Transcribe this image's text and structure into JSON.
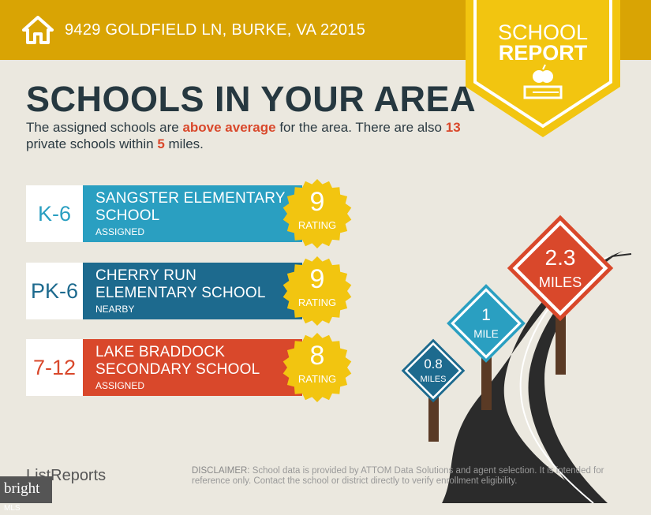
{
  "header": {
    "address": "9429 GOLDFIELD LN, BURKE, VA 22015",
    "icon": "home-icon"
  },
  "badge": {
    "line1": "SCHOOL",
    "line2": "REPORT",
    "icon": "apple-books-icon",
    "color": "#f2c510"
  },
  "title": "SCHOOLS IN YOUR AREA",
  "intro": {
    "p1": "The assigned schools are ",
    "highlight1": "above average",
    "p2": " for the area. There are also ",
    "count": "13",
    "p3": " private schools within ",
    "miles": "5",
    "p4": " miles."
  },
  "schools": [
    {
      "grade": "K-6",
      "name1": "SANGSTER ELEMENTARY",
      "name2": "SCHOOL",
      "type": "ASSIGNED",
      "rating": "9",
      "rating_label": "RATING",
      "color": "#2a9fc1",
      "grade_color": "#2a9fc1"
    },
    {
      "grade": "PK-6",
      "name1": "CHERRY RUN",
      "name2": "ELEMENTARY SCHOOL",
      "type": "NEARBY",
      "rating": "9",
      "rating_label": "RATING",
      "color": "#1d6a8e",
      "grade_color": "#1d6a8e"
    },
    {
      "grade": "7-12",
      "name1": "LAKE BRADDOCK",
      "name2": "SECONDARY SCHOOL",
      "type": "ASSIGNED",
      "rating": "8",
      "rating_label": "RATING",
      "color": "#d9482b",
      "grade_color": "#d9482b"
    }
  ],
  "signs": [
    {
      "value": "0.8",
      "unit": "MILES",
      "color": "#1d6a8e"
    },
    {
      "value": "1",
      "unit": "MILE",
      "color": "#2a9fc1"
    },
    {
      "value": "2.3",
      "unit": "MILES",
      "color": "#d9482b"
    }
  ],
  "footer": {
    "logo": "ListReports",
    "disclaimer_label": "DISCLAIMER:",
    "disclaimer": " School data is provided by ATTOM Data Solutions and agent selection. It is intended for reference only. Contact the school or district directly to verify enrollment eligibility.",
    "watermark": "bright",
    "watermark_suffix": "MLS"
  }
}
